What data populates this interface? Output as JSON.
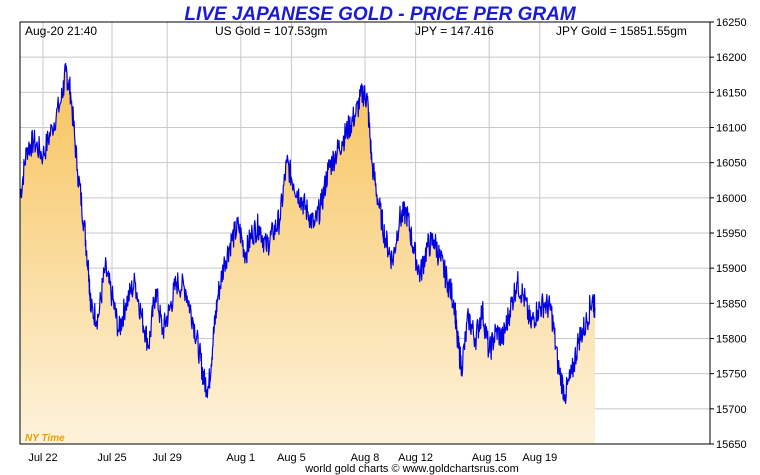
{
  "header": {
    "datetime": "Aug-20  21:40",
    "us_gold": "US Gold = 107.53gm",
    "jpy": "JPY = 147.416",
    "jpy_gold": "JPY Gold = 15851.55gm"
  },
  "timezone_label": "NY Time",
  "footer": "world gold charts © www.goldchartsrus.com",
  "colors": {
    "line": "#0000e0",
    "fill_top": "#f7c25a",
    "fill_bottom": "#fdf3dc",
    "title": "#1a1ad6",
    "timezone": "#e8a000"
  },
  "chart_data": {
    "type": "area",
    "title": "LIVE JAPANESE GOLD - PRICE PER GRAM",
    "xlabel": "",
    "ylabel": "",
    "ylim": [
      15650,
      16250
    ],
    "yticks": [
      15650,
      15700,
      15750,
      15800,
      15850,
      15900,
      15950,
      16000,
      16050,
      16100,
      16150,
      16200,
      16250
    ],
    "grid": true,
    "xlim": [
      0,
      30
    ],
    "xticks": [
      {
        "label": "Jul 22",
        "x": 1
      },
      {
        "label": "Jul 25",
        "x": 4
      },
      {
        "label": "Jul 29",
        "x": 6.4
      },
      {
        "label": "Aug 1",
        "x": 9.6
      },
      {
        "label": "Aug 5",
        "x": 11.8
      },
      {
        "label": "Aug 8",
        "x": 15
      },
      {
        "label": "Aug 12",
        "x": 17.2
      },
      {
        "label": "Aug 15",
        "x": 20.4
      },
      {
        "label": "Aug 19",
        "x": 22.6
      }
    ],
    "series": [
      {
        "x": [
          0,
          0.3,
          0.6,
          1.0,
          1.4,
          1.8,
          2.0,
          2.2,
          2.5,
          2.8,
          3.0,
          3.1,
          3.4,
          3.7,
          4.0,
          4.3,
          4.6,
          5.0,
          5.3,
          5.6,
          5.9,
          6.2,
          6.5,
          6.8,
          7.2,
          7.5,
          7.8,
          8.0,
          8.2,
          8.4,
          8.6,
          8.9,
          9.2,
          9.5,
          9.8,
          10.1,
          10.4,
          10.7,
          11.0,
          11.3,
          11.6,
          11.9,
          12.2,
          12.5,
          12.8,
          13.1,
          13.4,
          13.7,
          14.0,
          14.3,
          14.6,
          14.9,
          15.1,
          15.3,
          15.6,
          15.9,
          16.2,
          16.5,
          16.8,
          17.1,
          17.4,
          17.7,
          18.0,
          18.3,
          18.6,
          18.9,
          19.0,
          19.2,
          19.5,
          19.8,
          20.1,
          20.4,
          20.7,
          21.0,
          21.3,
          21.6,
          21.9,
          22.2,
          22.5,
          22.8,
          23.1,
          23.4,
          23.7,
          24.0,
          24.3,
          24.6,
          24.9,
          25.0
        ],
        "values": [
          16000,
          16070,
          16080,
          16060,
          16100,
          16140,
          16180,
          16150,
          16040,
          15960,
          15890,
          15840,
          15830,
          15900,
          15860,
          15810,
          15850,
          15880,
          15830,
          15790,
          15870,
          15810,
          15840,
          15880,
          15870,
          15830,
          15780,
          15740,
          15730,
          15800,
          15860,
          15910,
          15940,
          15960,
          15920,
          15950,
          15960,
          15930,
          15950,
          15970,
          16050,
          16020,
          16000,
          15980,
          15960,
          15990,
          16040,
          16060,
          16080,
          16100,
          16120,
          16150,
          16140,
          16050,
          15990,
          15940,
          15910,
          15970,
          15980,
          15930,
          15890,
          15930,
          15940,
          15910,
          15880,
          15850,
          15800,
          15760,
          15830,
          15800,
          15840,
          15780,
          15810,
          15800,
          15840,
          15880,
          15860,
          15820,
          15840,
          15850,
          15840,
          15760,
          15720,
          15750,
          15800,
          15820,
          15860,
          15840
        ]
      }
    ]
  }
}
